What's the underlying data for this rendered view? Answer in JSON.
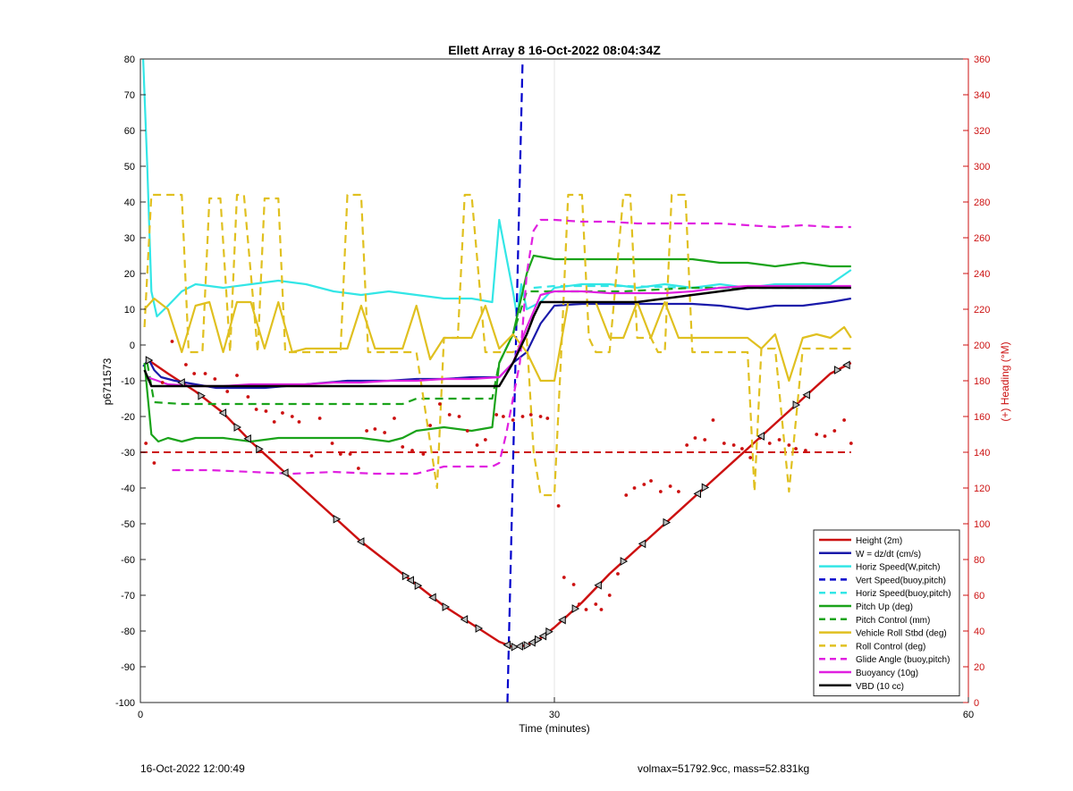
{
  "footer": {
    "left": "16-Oct-2022 12:00:49",
    "right": "volmax=51792.9cc, mass=52.831kg"
  },
  "chart_data": {
    "type": "line",
    "title": "Ellett Array 8 16-Oct-2022 08:04:34Z",
    "xlabel": "Time (minutes)",
    "ylabel": "p6711573",
    "ylabel_right": "(+) Heading (°M)",
    "xlim": [
      0,
      60
    ],
    "ylim": [
      -100,
      80
    ],
    "ylim_right": [
      0,
      360
    ],
    "xticks": [
      0,
      30,
      60
    ],
    "yticks": [
      -100,
      -90,
      -80,
      -70,
      -60,
      -50,
      -40,
      -30,
      -20,
      -10,
      0,
      10,
      20,
      30,
      40,
      50,
      60,
      70,
      80
    ],
    "yticks_right": [
      0,
      20,
      40,
      60,
      80,
      100,
      120,
      140,
      160,
      180,
      200,
      220,
      240,
      260,
      280,
      300,
      320,
      340,
      360
    ],
    "grid": "vertical at 30",
    "legend_position": "bottom-right",
    "colors": {
      "height": "#cc1111",
      "w": "#1a1aaa",
      "horiz": "#33e6e6",
      "vert": "#0000cc",
      "pitch": "#1aa31a",
      "roll": "#e0c020",
      "glide": "#e020e0",
      "vbd": "#000000",
      "axis_right": "#cc1111"
    },
    "series": [
      {
        "name": "Height (2m)",
        "color": "#cc1111",
        "style": "solid",
        "x": [
          0.5,
          2,
          4,
          6,
          8,
          10,
          12,
          14,
          16,
          18,
          20,
          22,
          24,
          26,
          27,
          28,
          29,
          30,
          32,
          34,
          36,
          38,
          40,
          42,
          44,
          46,
          48,
          50,
          51.5
        ],
        "y": [
          -4,
          -8,
          -13,
          -19,
          -27,
          -34,
          -41,
          -48,
          -55,
          -61,
          -67,
          -73,
          -78,
          -83,
          -84.5,
          -84,
          -82,
          -79,
          -72,
          -64,
          -57,
          -50,
          -43,
          -36,
          -29,
          -22,
          -15,
          -8,
          -5
        ]
      },
      {
        "name": "W = dz/dt (cm/s)",
        "color": "#1a1aaa",
        "style": "solid",
        "x": [
          0.2,
          0.6,
          1,
          1.5,
          2.5,
          4,
          5.5,
          7,
          9,
          12,
          15,
          18,
          20,
          22,
          24,
          26,
          27,
          28,
          29,
          30,
          32,
          35,
          38,
          40,
          42,
          44,
          46,
          48,
          50,
          51.5
        ],
        "y": [
          -6,
          -4,
          -7,
          -9,
          -10,
          -11,
          -12,
          -12,
          -12,
          -11,
          -10,
          -10,
          -9.5,
          -9.5,
          -9,
          -9,
          -5,
          -2,
          6,
          11,
          11.5,
          11.5,
          11.5,
          11.5,
          11,
          10,
          11,
          11,
          12,
          13
        ]
      },
      {
        "name": "Horiz Speed(W,pitch)",
        "color": "#33e6e6",
        "style": "solid",
        "x": [
          0.2,
          0.5,
          0.8,
          1.2,
          2,
          3,
          4,
          6,
          8,
          10,
          12,
          14,
          16,
          18,
          20,
          22,
          24,
          25.5,
          26,
          26.5,
          27,
          27.3,
          27.6,
          28,
          29,
          30,
          32,
          34,
          36,
          38,
          40,
          42,
          44,
          46,
          48,
          50,
          51.5
        ],
        "y": [
          80,
          50,
          15,
          8,
          11,
          15,
          17,
          16,
          17,
          18,
          17,
          15,
          14,
          15,
          14,
          13,
          13,
          12,
          35,
          25,
          15,
          8,
          17,
          10,
          12,
          16,
          17,
          17,
          16,
          17,
          16,
          17,
          16,
          17,
          17,
          17,
          21
        ]
      },
      {
        "name": "Vert Speed(buoy,pitch)",
        "color": "#0000cc",
        "style": "dashed",
        "x": [
          26.6,
          27.7
        ],
        "y": [
          -100,
          80
        ]
      },
      {
        "name": "Horiz Speed(buoy,pitch)",
        "color": "#33e6e6",
        "style": "dashed",
        "x": [
          28.5,
          30,
          35,
          40,
          45,
          50,
          51.5
        ],
        "y": [
          16,
          16.5,
          16.5,
          16,
          16,
          16,
          16
        ]
      },
      {
        "name": "Pitch Up (deg)",
        "color": "#1aa31a",
        "style": "solid",
        "x": [
          0.3,
          0.8,
          1.3,
          2,
          3,
          4,
          6,
          8,
          10,
          12,
          14,
          16,
          18,
          19,
          20,
          22,
          24,
          25.5,
          26,
          27,
          28,
          28.5,
          30,
          32,
          34,
          36,
          38,
          40,
          42,
          44,
          46,
          48,
          50,
          51.5
        ],
        "y": [
          -5,
          -25,
          -27,
          -26,
          -27,
          -26,
          -26,
          -27,
          -26,
          -26,
          -26,
          -26,
          -27,
          -26,
          -24,
          -23,
          -24,
          -23,
          -5,
          3,
          20,
          25,
          24,
          24,
          24,
          24,
          24,
          24,
          23,
          23,
          22,
          23,
          22,
          22
        ]
      },
      {
        "name": "Pitch Control (mm)",
        "color": "#1aa31a",
        "style": "dashed",
        "x": [
          0.5,
          1,
          3,
          6,
          9,
          12,
          15,
          18,
          19,
          20,
          22,
          24,
          25.5,
          26,
          27,
          28,
          30,
          35,
          40,
          45,
          50,
          51.5
        ],
        "y": [
          -5,
          -16,
          -16.5,
          -16.5,
          -16.5,
          -16.5,
          -16.5,
          -16.5,
          -16.5,
          -15,
          -15,
          -15,
          -15,
          -5,
          3,
          15,
          15,
          15,
          16,
          16,
          16,
          16
        ]
      },
      {
        "name": "Vehicle Roll Stbd (deg)",
        "color": "#e0c020",
        "style": "solid",
        "x": [
          0.3,
          1,
          2,
          3,
          4,
          5,
          6,
          7,
          8,
          9,
          10,
          11,
          12,
          13,
          14,
          15,
          16,
          17,
          18,
          19,
          20,
          21,
          22,
          23,
          24,
          25,
          26,
          27,
          28,
          29,
          30,
          31,
          32,
          33,
          34,
          35,
          36,
          37,
          38,
          39,
          40,
          41,
          42,
          43,
          44,
          45,
          46,
          47,
          48,
          49,
          50,
          51,
          51.5
        ],
        "y": [
          10,
          13,
          10,
          -2,
          11,
          12,
          -2,
          12,
          12,
          -1,
          12,
          -2,
          -1,
          -1,
          -1,
          -1,
          11,
          -1,
          -1,
          -1,
          11,
          -4,
          2,
          2,
          2,
          11,
          -1,
          3,
          -2,
          -10,
          -10,
          12,
          12,
          12,
          2,
          2,
          12,
          2,
          12,
          2,
          2,
          2,
          2,
          2,
          2,
          -1,
          3,
          -10,
          2,
          3,
          2,
          5,
          2
        ]
      },
      {
        "name": "Roll Control (deg)",
        "color": "#e0c020",
        "style": "dashed",
        "x": [
          0.3,
          0.8,
          1.5,
          2.3,
          3,
          3.5,
          4.5,
          5,
          5.8,
          6.5,
          7,
          7.5,
          8.5,
          9,
          10,
          10.5,
          12,
          14.5,
          15,
          16,
          16.5,
          18,
          20,
          21.5,
          22,
          23,
          23.5,
          24,
          25,
          26,
          27,
          28,
          28.5,
          29,
          30,
          30.5,
          31,
          32,
          32.5,
          33,
          34,
          35,
          35.5,
          36,
          37,
          37.5,
          38,
          38.5,
          39.5,
          40,
          41,
          42,
          44,
          44.5,
          45,
          46,
          47,
          48,
          49,
          50,
          51.5
        ],
        "y": [
          5,
          42,
          42,
          42,
          42,
          -2,
          -2,
          41,
          41,
          -2,
          42,
          42,
          -2,
          41,
          41,
          -2,
          -2,
          -2,
          42,
          42,
          -2,
          -2,
          -2,
          -40,
          2,
          2,
          42,
          42,
          -2,
          -2,
          -2,
          2,
          -30,
          -42,
          -42,
          -2,
          42,
          42,
          2,
          -2,
          -2,
          42,
          42,
          2,
          2,
          -2,
          -2,
          42,
          42,
          -2,
          -2,
          -2,
          -2,
          -41,
          -1,
          -1,
          -41,
          -1,
          -1,
          -1,
          -1
        ]
      },
      {
        "name": "Glide Angle (buoy,pitch)",
        "color": "#e020e0",
        "style": "dashed",
        "x": [
          2.3,
          5,
          8,
          11,
          14,
          17,
          20,
          22,
          24,
          25.5,
          26,
          26.5,
          27,
          27.5,
          28,
          28.5,
          29,
          30,
          32,
          34,
          36,
          38,
          40,
          42,
          44,
          46,
          48,
          50,
          51.5
        ],
        "y": [
          -35,
          -35,
          -35.5,
          -36,
          -35.5,
          -36,
          -36,
          -34,
          -34,
          -34,
          -33,
          -25,
          -15,
          -5,
          20,
          32,
          35,
          35,
          34.5,
          34.5,
          34,
          34,
          34,
          34,
          33.5,
          33,
          33.5,
          33,
          33
        ]
      },
      {
        "name": "Buoyancy (10g)",
        "color": "#e020e0",
        "style": "solid",
        "x": [
          0.5,
          2,
          4,
          6,
          8,
          10,
          12,
          14,
          16,
          18,
          20,
          22,
          24,
          26,
          27,
          28,
          29,
          30,
          32,
          34,
          36,
          38,
          40,
          42,
          44,
          46,
          48,
          50,
          51.5
        ],
        "y": [
          -9,
          -11,
          -11.5,
          -11.5,
          -11,
          -11,
          -11,
          -10.5,
          -10.5,
          -10,
          -10,
          -9.5,
          -9.5,
          -9,
          -5,
          5,
          14,
          15,
          15,
          14.5,
          14.5,
          14.5,
          15,
          16,
          16.5,
          16.5,
          16.5,
          16.5,
          16.5
        ]
      },
      {
        "name": "VBD (10 cc)",
        "color": "#000000",
        "style": "solid",
        "x": [
          0.3,
          0.8,
          3,
          6,
          9,
          12,
          15,
          18,
          21,
          24,
          26,
          27,
          28,
          28.5,
          29,
          30,
          32,
          34,
          36,
          38,
          40,
          42,
          44,
          46,
          48,
          50,
          51.5
        ],
        "y": [
          -7,
          -11.5,
          -11.5,
          -11.5,
          -11.5,
          -11.5,
          -11.5,
          -11.5,
          -11.5,
          -11.5,
          -11.5,
          -5,
          3,
          8,
          12,
          12,
          12,
          12,
          12,
          13,
          14,
          15,
          16,
          16,
          16,
          16,
          16
        ]
      }
    ],
    "heading_line": {
      "value": 140,
      "color": "#cc1111"
    },
    "heading_points": {
      "x": [
        0.4,
        1,
        1.6,
        2.3,
        3.3,
        3.9,
        4.7,
        5.4,
        6.3,
        7,
        7.8,
        8.4,
        9.1,
        9.7,
        10.3,
        11,
        11.5,
        12.4,
        13,
        13.9,
        14.5,
        15.2,
        15.8,
        16.4,
        17,
        17.7,
        18.4,
        19,
        19.7,
        20.5,
        21,
        21.7,
        22.4,
        23.1,
        23.7,
        24.4,
        25,
        25.8,
        26.3,
        27,
        27.7,
        28.3,
        29,
        29.5,
        30.3,
        30.7,
        31.4,
        31.8,
        32.3,
        33,
        33.4,
        34,
        34.6,
        35.2,
        35.8,
        36.5,
        37,
        37.7,
        38.4,
        39,
        39.6,
        40.2,
        40.9,
        41.5,
        42.3,
        43,
        43.6,
        44.2,
        44.9,
        45.6,
        46.3,
        47,
        47.5,
        48.2,
        49,
        49.6,
        50.3,
        51,
        51.5
      ],
      "y": [
        145,
        134,
        179,
        202,
        189,
        184,
        184,
        181,
        174,
        183,
        171,
        164,
        163,
        157,
        162,
        160,
        157,
        138,
        159,
        145,
        139,
        139,
        131,
        152,
        153,
        151,
        159,
        143,
        141,
        139,
        155,
        167,
        161,
        160,
        152,
        144,
        147,
        161,
        160,
        158,
        160,
        161,
        160,
        159,
        110,
        70,
        66,
        55,
        52,
        55,
        52,
        60,
        72,
        116,
        120,
        122,
        124,
        118,
        121,
        118,
        144,
        148,
        147,
        158,
        145,
        144,
        142,
        137,
        148,
        145,
        147,
        144,
        142,
        141,
        150,
        149,
        152,
        158,
        145
      ]
    },
    "markers_x": [
      0.6,
      3,
      4.4,
      6,
      7,
      7.8,
      8.6,
      10.5,
      14.2,
      16,
      19.2,
      19.6,
      20.1,
      21.2,
      22.1,
      23.5,
      24.5,
      26.6,
      27.1,
      27.5,
      28,
      28.4,
      28.8,
      29.2,
      29.6,
      30.6,
      31.5,
      33.2,
      35,
      36.4,
      38.1,
      40.4,
      40.9,
      45,
      47.5,
      48.3,
      50.5,
      51.2
    ]
  }
}
